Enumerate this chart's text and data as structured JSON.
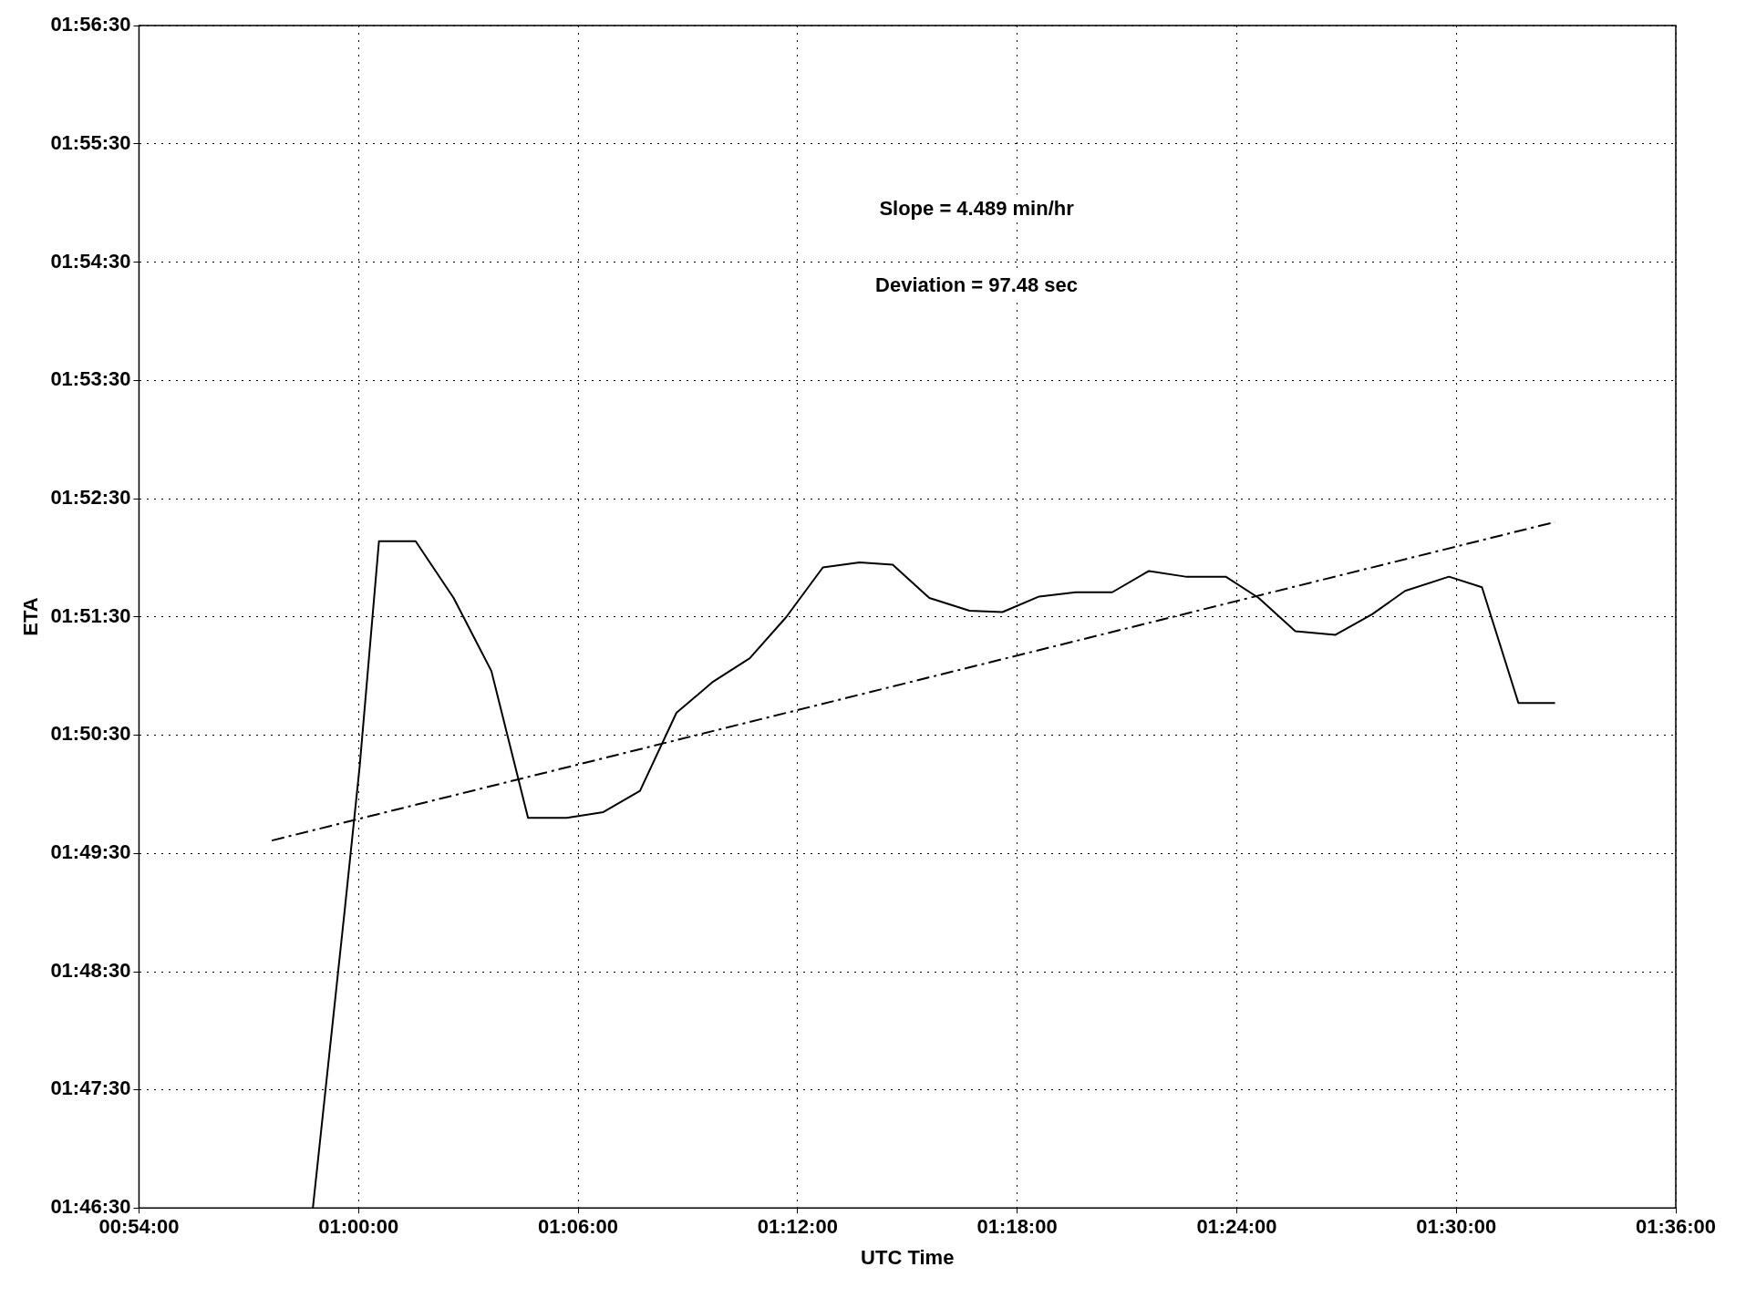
{
  "chart_data": {
    "type": "line",
    "xlabel": "UTC Time",
    "ylabel": "ETA",
    "annotations": [
      "Slope = 4.489 min/hr",
      "Deviation = 97.48 sec"
    ],
    "xlim": [
      0.9,
      1.6
    ],
    "xticks": [
      {
        "value": 0.9,
        "label": "00:54:00"
      },
      {
        "value": 1.0,
        "label": "01:00:00"
      },
      {
        "value": 1.1,
        "label": "01:06:00"
      },
      {
        "value": 1.2,
        "label": "01:12:00"
      },
      {
        "value": 1.3,
        "label": "01:18:00"
      },
      {
        "value": 1.4,
        "label": "01:24:00"
      },
      {
        "value": 1.5,
        "label": "01:30:00"
      },
      {
        "value": 1.6,
        "label": "01:36:00"
      }
    ],
    "ylim": [
      1.775,
      1.9417
    ],
    "yticks": [
      {
        "value": 1.775,
        "label": "01:46:30"
      },
      {
        "value": 1.7917,
        "label": "01:47:30"
      },
      {
        "value": 1.8083,
        "label": "01:48:30"
      },
      {
        "value": 1.825,
        "label": "01:49:30"
      },
      {
        "value": 1.8417,
        "label": "01:50:30"
      },
      {
        "value": 1.8583,
        "label": "01:51:30"
      },
      {
        "value": 1.875,
        "label": "01:52:30"
      },
      {
        "value": 1.8917,
        "label": "01:53:30"
      },
      {
        "value": 1.9083,
        "label": "01:54:30"
      },
      {
        "value": 1.925,
        "label": "01:55:30"
      },
      {
        "value": 1.9417,
        "label": "01:56:30"
      }
    ],
    "grid": true,
    "legend": false,
    "marker": "none",
    "series": [
      {
        "color": "#000000",
        "line_style": "solid",
        "x": [
          0.9792,
          0.9938,
          1.0005,
          1.0093,
          1.026,
          1.0433,
          1.0605,
          1.0772,
          1.0948,
          1.1115,
          1.1282,
          1.1448,
          1.1615,
          1.1782,
          1.1948,
          1.2115,
          1.2282,
          1.2433,
          1.26,
          1.2783,
          1.2933,
          1.31,
          1.3267,
          1.3433,
          1.36,
          1.3767,
          1.395,
          1.41,
          1.4267,
          1.445,
          1.4617,
          1.4767,
          1.4967,
          1.5117,
          1.5283,
          1.545
        ],
        "values": [
          1.775,
          1.8173,
          1.8372,
          1.869,
          1.869,
          1.861,
          1.8507,
          1.83,
          1.83,
          1.8308,
          1.8338,
          1.8448,
          1.8492,
          1.8525,
          1.8583,
          1.8653,
          1.866,
          1.8657,
          1.861,
          1.8592,
          1.859,
          1.8612,
          1.8618,
          1.8618,
          1.8648,
          1.864,
          1.864,
          1.861,
          1.8563,
          1.8558,
          1.8587,
          1.862,
          1.864,
          1.8625,
          1.8462,
          1.8462
        ]
      },
      {
        "type": "line",
        "color": "#000000",
        "line_style": "dashed",
        "x": [
          0.9605,
          1.545
        ],
        "values": [
          1.8268,
          1.8717
        ]
      }
    ]
  }
}
